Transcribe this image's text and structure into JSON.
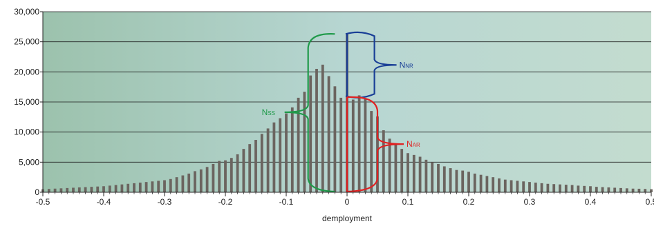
{
  "chart_data": {
    "type": "bar",
    "title": "",
    "xlabel": "demployment",
    "ylabel": "",
    "xlim": [
      -0.5,
      0.5
    ],
    "ylim": [
      0,
      30000
    ],
    "grid": true,
    "xticks": [
      "-0.5",
      "-0.4",
      "-0.3",
      "-0.2",
      "-0.1",
      "0",
      "0.1",
      "0.2",
      "0.3",
      "0.4",
      "0.5"
    ],
    "yticks": [
      "0",
      "5,000",
      "10,000",
      "15,000",
      "20,000",
      "25,000",
      "30,000"
    ],
    "bin_width": 0.01,
    "x": [
      -0.5,
      -0.49,
      -0.48,
      -0.47,
      -0.46,
      -0.45,
      -0.44,
      -0.43,
      -0.42,
      -0.41,
      -0.4,
      -0.39,
      -0.38,
      -0.37,
      -0.36,
      -0.35,
      -0.34,
      -0.33,
      -0.32,
      -0.31,
      -0.3,
      -0.29,
      -0.28,
      -0.27,
      -0.26,
      -0.25,
      -0.24,
      -0.23,
      -0.22,
      -0.21,
      -0.2,
      -0.19,
      -0.18,
      -0.17,
      -0.16,
      -0.15,
      -0.14,
      -0.13,
      -0.12,
      -0.11,
      -0.1,
      -0.09,
      -0.08,
      -0.07,
      -0.06,
      -0.05,
      -0.04,
      -0.03,
      -0.02,
      -0.01,
      0,
      0.01,
      0.02,
      0.03,
      0.04,
      0.05,
      0.06,
      0.07,
      0.08,
      0.09,
      0.1,
      0.11,
      0.12,
      0.13,
      0.14,
      0.15,
      0.16,
      0.17,
      0.18,
      0.19,
      0.2,
      0.21,
      0.22,
      0.23,
      0.24,
      0.25,
      0.26,
      0.27,
      0.28,
      0.29,
      0.3,
      0.31,
      0.32,
      0.33,
      0.34,
      0.35,
      0.36,
      0.37,
      0.38,
      0.39,
      0.4,
      0.41,
      0.42,
      0.43,
      0.44,
      0.45,
      0.46,
      0.47,
      0.48,
      0.49,
      0.5
    ],
    "values": [
      500,
      550,
      600,
      650,
      700,
      750,
      800,
      850,
      900,
      950,
      1000,
      1100,
      1200,
      1300,
      1400,
      1500,
      1600,
      1700,
      1800,
      1900,
      2000,
      2200,
      2500,
      2800,
      3100,
      3500,
      3800,
      4200,
      4700,
      5200,
      5300,
      5700,
      6300,
      7200,
      8000,
      8700,
      9700,
      10600,
      11600,
      12300,
      13100,
      14100,
      15700,
      16700,
      19400,
      20500,
      21200,
      19300,
      17600,
      15700,
      26300,
      15400,
      16100,
      15600,
      13500,
      12600,
      10300,
      8900,
      8000,
      7200,
      6500,
      6200,
      5900,
      5400,
      5000,
      4700,
      4300,
      4000,
      3700,
      3600,
      3400,
      3100,
      2900,
      2700,
      2500,
      2300,
      2100,
      2000,
      1900,
      1800,
      1700,
      1600,
      1500,
      1400,
      1350,
      1300,
      1250,
      1200,
      1100,
      1050,
      1000,
      900,
      850,
      800,
      750,
      700,
      650,
      600,
      580,
      550,
      500
    ],
    "annotations": [
      {
        "label": "N",
        "sub": "NR",
        "color": "#1a3f97"
      },
      {
        "label": "N",
        "sub": "SS",
        "color": "#1f9a4a"
      },
      {
        "label": "N",
        "sub": "AR",
        "color": "#e02222"
      }
    ]
  }
}
